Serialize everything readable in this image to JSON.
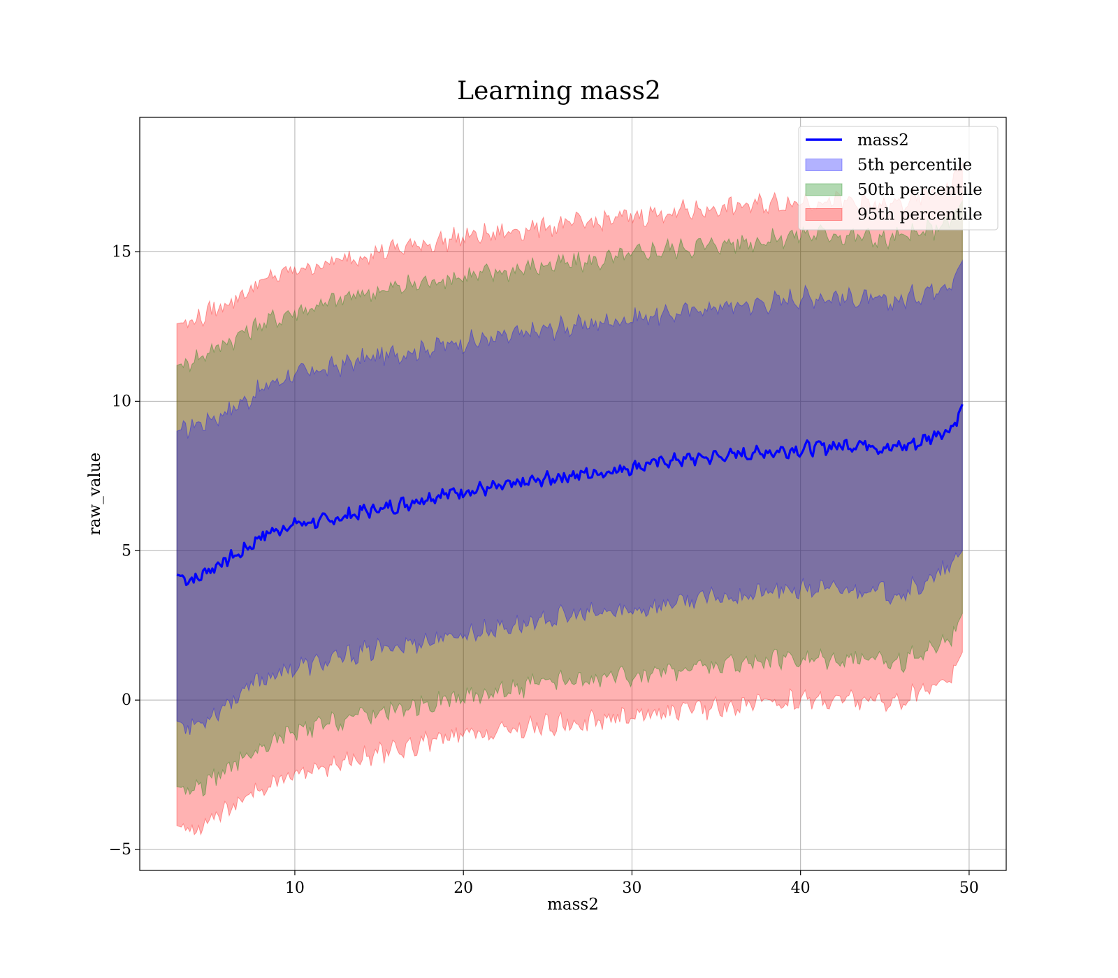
{
  "chart_data": {
    "type": "area",
    "title": "Learning mass2",
    "xlabel": "mass2",
    "ylabel": "raw_value",
    "xlim": [
      0.8,
      52.2
    ],
    "ylim": [
      -5.7,
      19.5
    ],
    "xticks": [
      10,
      20,
      30,
      40,
      50
    ],
    "xtick_labels": [
      "10",
      "20",
      "30",
      "40",
      "50"
    ],
    "yticks": [
      -5,
      0,
      5,
      10,
      15
    ],
    "ytick_labels": [
      "−5",
      "0",
      "5",
      "10",
      "15"
    ],
    "grid": true,
    "legend_position": "upper right",
    "legend": [
      "mass2",
      "5th percentile",
      "50th percentile",
      "95th percentile"
    ],
    "x": [
      3.0,
      4.0,
      5.0,
      6.0,
      7.0,
      8.0,
      9.0,
      10.0,
      12.0,
      14.0,
      16.0,
      18.0,
      20.0,
      22.0,
      24.0,
      26.0,
      28.0,
      30.0,
      32.0,
      34.0,
      36.0,
      38.0,
      40.0,
      42.0,
      44.0,
      45.0,
      46.0,
      47.0,
      48.0,
      49.0,
      49.6
    ],
    "line": {
      "name": "mass2",
      "color": "#0000ff",
      "values": [
        4.2,
        4.0,
        4.4,
        4.7,
        5.0,
        5.5,
        5.7,
        5.9,
        6.0,
        6.3,
        6.5,
        6.8,
        7.0,
        7.1,
        7.3,
        7.5,
        7.6,
        7.8,
        8.0,
        8.1,
        8.2,
        8.3,
        8.4,
        8.5,
        8.6,
        8.4,
        8.5,
        8.6,
        8.9,
        9.1,
        9.9
      ]
    },
    "bands": [
      {
        "name": "5th percentile",
        "color": "#0000ff",
        "lower": [
          -0.7,
          -0.9,
          -0.5,
          -0.1,
          0.3,
          0.7,
          0.9,
          1.1,
          1.3,
          1.6,
          1.8,
          2.0,
          2.2,
          2.4,
          2.6,
          2.8,
          2.9,
          3.0,
          3.2,
          3.4,
          3.5,
          3.6,
          3.7,
          3.7,
          3.7,
          3.6,
          3.6,
          3.8,
          4.1,
          4.5,
          5.0
        ],
        "upper": [
          9.0,
          9.2,
          9.4,
          9.7,
          10.0,
          10.4,
          10.7,
          10.9,
          11.1,
          11.4,
          11.6,
          11.8,
          12.0,
          12.1,
          12.3,
          12.5,
          12.6,
          12.8,
          12.9,
          13.1,
          13.2,
          13.3,
          13.5,
          13.5,
          13.4,
          13.3,
          13.4,
          13.6,
          13.8,
          14.1,
          14.7
        ]
      },
      {
        "name": "50th percentile",
        "color": "#008000",
        "lower": [
          -2.9,
          -3.0,
          -2.7,
          -2.3,
          -2.0,
          -1.6,
          -1.3,
          -1.1,
          -0.8,
          -0.5,
          -0.3,
          -0.1,
          0.1,
          0.3,
          0.5,
          0.6,
          0.7,
          0.8,
          1.0,
          1.1,
          1.2,
          1.3,
          1.4,
          1.4,
          1.4,
          1.3,
          1.3,
          1.5,
          1.8,
          2.2,
          2.9
        ],
        "upper": [
          11.2,
          11.4,
          11.7,
          12.0,
          12.3,
          12.6,
          12.8,
          13.0,
          13.3,
          13.6,
          13.8,
          14.0,
          14.2,
          14.3,
          14.5,
          14.6,
          14.7,
          14.9,
          15.1,
          15.2,
          15.3,
          15.4,
          15.6,
          15.6,
          15.5,
          15.4,
          15.5,
          15.6,
          15.8,
          16.1,
          16.7
        ]
      },
      {
        "name": "95th percentile",
        "color": "#ff0000",
        "lower": [
          -4.2,
          -4.4,
          -4.0,
          -3.7,
          -3.4,
          -3.0,
          -2.7,
          -2.5,
          -2.2,
          -1.9,
          -1.7,
          -1.4,
          -1.2,
          -1.1,
          -0.9,
          -0.8,
          -0.7,
          -0.5,
          -0.4,
          -0.3,
          -0.2,
          -0.1,
          0.0,
          0.0,
          0.0,
          -0.1,
          0.0,
          0.2,
          0.5,
          0.9,
          1.6
        ],
        "upper": [
          12.6,
          12.7,
          13.0,
          13.3,
          13.6,
          14.0,
          14.2,
          14.4,
          14.6,
          14.9,
          15.1,
          15.3,
          15.5,
          15.6,
          15.8,
          15.9,
          16.0,
          16.2,
          16.3,
          16.4,
          16.5,
          16.6,
          16.7,
          16.7,
          16.6,
          16.5,
          16.6,
          16.8,
          17.0,
          17.3,
          18.0
        ]
      }
    ]
  }
}
